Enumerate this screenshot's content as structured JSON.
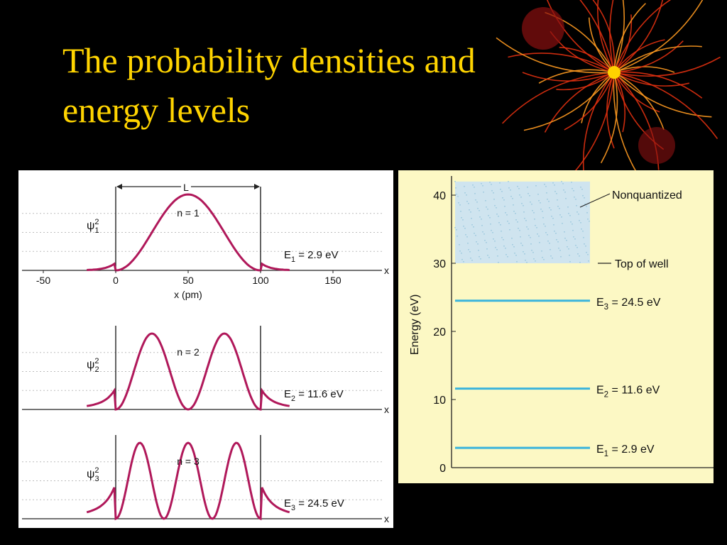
{
  "slide": {
    "title_line1": "The probability densities and",
    "title_line2": "energy levels"
  },
  "colors": {
    "background": "#000000",
    "title": "#ffd400",
    "left_panel_bg": "#ffffff",
    "right_panel_bg": "#fcf8c4",
    "probability_curve": "#b0185a",
    "energy_line": "#3ab4dc",
    "nonquantized_fill": "#cfe4ef",
    "decoration": "#e03010"
  },
  "decoration": {
    "icon": "firework-burst-icon"
  },
  "chart_data": [
    {
      "type": "line",
      "panels": [
        {
          "label": "ψ",
          "subscript": "1",
          "superscript": "2",
          "n_label": "n = 1",
          "n": 1,
          "energy_label": "E",
          "energy_subscript": "1",
          "energy_value": " = 2.9 eV"
        },
        {
          "label": "ψ",
          "subscript": "2",
          "superscript": "2",
          "n_label": "n = 2",
          "n": 2,
          "energy_label": "E",
          "energy_subscript": "2",
          "energy_value": " = 11.6 eV"
        },
        {
          "label": "ψ",
          "subscript": "3",
          "superscript": "2",
          "n_label": "n = 3",
          "n": 3,
          "energy_label": "E",
          "energy_subscript": "3",
          "energy_value": " = 24.5 eV"
        }
      ],
      "width_label": "L",
      "well_edges": [
        0,
        100
      ],
      "xlim": [
        -50,
        190
      ],
      "curve_x_range": [
        -20,
        120
      ],
      "x_ticks": [
        -50,
        0,
        50,
        100,
        150
      ],
      "x_tick_labels": [
        "-50",
        "0",
        "50",
        "100",
        "150"
      ],
      "xlabel": "x (pm)",
      "axis_end_label": "x",
      "grid": "dotted horizontal"
    },
    {
      "type": "bar",
      "ylabel": "Energy (eV)",
      "ylim": [
        0,
        42
      ],
      "y_ticks": [
        0,
        10,
        20,
        30,
        40
      ],
      "y_tick_labels": [
        "0",
        "10",
        "20",
        "30",
        "40"
      ],
      "nonquantized": {
        "label": "Nonquantized",
        "from": 30,
        "to": 42
      },
      "top_of_well": {
        "label": "Top of well",
        "value": 30
      },
      "levels": [
        {
          "label": "E",
          "subscript": "1",
          "value_text": " = 2.9 eV",
          "value": 2.9
        },
        {
          "label": "E",
          "subscript": "2",
          "value_text": " = 11.6 eV",
          "value": 11.6
        },
        {
          "label": "E",
          "subscript": "3",
          "value_text": " = 24.5 eV",
          "value": 24.5
        }
      ]
    }
  ]
}
